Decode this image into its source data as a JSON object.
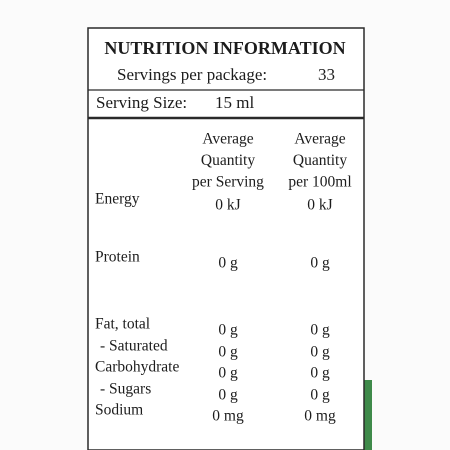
{
  "header": {
    "title": "NUTRITION INFORMATION",
    "servings_per_package": {
      "label": "Servings per package:",
      "value": "33"
    },
    "serving_size": {
      "label": "Serving Size:",
      "value": "15 ml"
    }
  },
  "table": {
    "columns": [
      [
        "Average",
        "Quantity",
        "per Serving"
      ],
      [
        "Average",
        "Quantity",
        "per 100ml"
      ]
    ],
    "rows": [
      [
        "Energy",
        "0 kJ",
        "0 kJ"
      ],
      [
        "Protein",
        "0 g",
        "0 g"
      ],
      [
        "Fat, total",
        "0 g",
        "0 g"
      ],
      [
        "- Saturated",
        "0 g",
        "0 g"
      ],
      [
        "Carbohydrate",
        "0 g",
        "0 g"
      ],
      [
        "- Sugars",
        "0 g",
        "0 g"
      ],
      [
        "Sodium",
        "0 mg",
        "0 mg"
      ]
    ]
  }
}
